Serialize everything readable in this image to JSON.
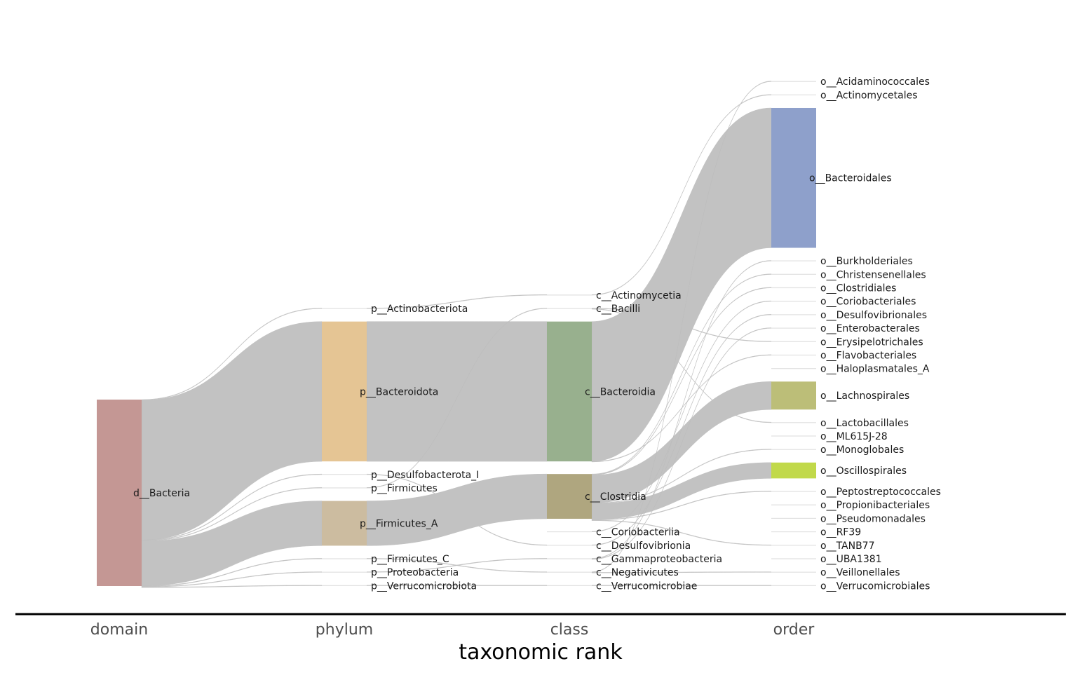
{
  "chart_data": {
    "type": "sankey",
    "xlabel": "taxonomic rank",
    "ranks": [
      "domain",
      "phylum",
      "class",
      "order"
    ],
    "colors": {
      "link": "#c2c2c2",
      "d__Bacteria": "#c49794",
      "p__Bacteroidota": "#e5c594",
      "p__Firmicutes_A": "#ccbca0",
      "c__Bacteroidia": "#98b08e",
      "c__Clostridia": "#afa67f",
      "o__Bacteroidales": "#8ea0cb",
      "o__Lachnospirales": "#bcbe78",
      "o__Oscillospirales": "#c1d94a",
      "minor": "#e0e0e0"
    },
    "nodes": [
      {
        "name": "d__Bacteria",
        "rank": 0,
        "value": 100
      },
      {
        "name": "p__Actinobacteriota",
        "rank": 1,
        "value": 0.1
      },
      {
        "name": "p__Bacteroidota",
        "rank": 1,
        "value": 75
      },
      {
        "name": "p__Desulfobacterota_I",
        "rank": 1,
        "value": 0.1
      },
      {
        "name": "p__Firmicutes",
        "rank": 1,
        "value": 0.1
      },
      {
        "name": "p__Firmicutes_A",
        "rank": 1,
        "value": 24
      },
      {
        "name": "p__Firmicutes_C",
        "rank": 1,
        "value": 0.3
      },
      {
        "name": "p__Proteobacteria",
        "rank": 1,
        "value": 0.3
      },
      {
        "name": "p__Verrucomicrobiota",
        "rank": 1,
        "value": 0.1
      },
      {
        "name": "c__Actinomycetia",
        "rank": 2,
        "value": 0.1
      },
      {
        "name": "c__Bacilli",
        "rank": 2,
        "value": 0.1
      },
      {
        "name": "c__Bacteroidia",
        "rank": 2,
        "value": 75
      },
      {
        "name": "c__Clostridia",
        "rank": 2,
        "value": 24
      },
      {
        "name": "c__Coriobacteriia",
        "rank": 2,
        "value": 0.1
      },
      {
        "name": "c__Desulfovibrionia",
        "rank": 2,
        "value": 0.1
      },
      {
        "name": "c__Gammaproteobacteria",
        "rank": 2,
        "value": 0.3
      },
      {
        "name": "c__Negativicutes",
        "rank": 2,
        "value": 0.3
      },
      {
        "name": "c__Verrucomicrobiae",
        "rank": 2,
        "value": 0.1
      },
      {
        "name": "o__Acidaminococcales",
        "rank": 3,
        "value": 0.1
      },
      {
        "name": "o__Actinomycetales",
        "rank": 3,
        "value": 0.1
      },
      {
        "name": "o__Bacteroidales",
        "rank": 3,
        "value": 75
      },
      {
        "name": "o__Burkholderiales",
        "rank": 3,
        "value": 0.2
      },
      {
        "name": "o__Christensenellales",
        "rank": 3,
        "value": 0.2
      },
      {
        "name": "o__Clostridiales",
        "rank": 3,
        "value": 0.1
      },
      {
        "name": "o__Coriobacteriales",
        "rank": 3,
        "value": 0.1
      },
      {
        "name": "o__Desulfovibrionales",
        "rank": 3,
        "value": 0.1
      },
      {
        "name": "o__Enterobacterales",
        "rank": 3,
        "value": 0.1
      },
      {
        "name": "o__Erysipelotrichales",
        "rank": 3,
        "value": 0.1
      },
      {
        "name": "o__Flavobacteriales",
        "rank": 3,
        "value": 0.2
      },
      {
        "name": "o__Haloplasmatales_A",
        "rank": 3,
        "value": 0.05
      },
      {
        "name": "o__Lachnospirales",
        "rank": 3,
        "value": 15
      },
      {
        "name": "o__Lactobacillales",
        "rank": 3,
        "value": 0.05
      },
      {
        "name": "o__ML615J-28",
        "rank": 3,
        "value": 0.05
      },
      {
        "name": "o__Monoglobales",
        "rank": 3,
        "value": 0.05
      },
      {
        "name": "o__Oscillospirales",
        "rank": 3,
        "value": 8.5
      },
      {
        "name": "o__Peptostreptococcales",
        "rank": 3,
        "value": 0.1
      },
      {
        "name": "o__Propionibacteriales",
        "rank": 3,
        "value": 0.05
      },
      {
        "name": "o__Pseudomonadales",
        "rank": 3,
        "value": 0.05
      },
      {
        "name": "o__RF39",
        "rank": 3,
        "value": 0.05
      },
      {
        "name": "o__TANB77",
        "rank": 3,
        "value": 0.05
      },
      {
        "name": "o__UBA1381",
        "rank": 3,
        "value": 0.05
      },
      {
        "name": "o__Veillonellales",
        "rank": 3,
        "value": 0.2
      },
      {
        "name": "o__Verrucomicrobiales",
        "rank": 3,
        "value": 0.1
      }
    ],
    "links": [
      {
        "source": "d__Bacteria",
        "target": "p__Actinobacteriota",
        "value": 0.1
      },
      {
        "source": "d__Bacteria",
        "target": "p__Bacteroidota",
        "value": 75
      },
      {
        "source": "d__Bacteria",
        "target": "p__Desulfobacterota_I",
        "value": 0.1
      },
      {
        "source": "d__Bacteria",
        "target": "p__Firmicutes",
        "value": 0.1
      },
      {
        "source": "d__Bacteria",
        "target": "p__Firmicutes_A",
        "value": 24
      },
      {
        "source": "d__Bacteria",
        "target": "p__Firmicutes_C",
        "value": 0.3
      },
      {
        "source": "d__Bacteria",
        "target": "p__Proteobacteria",
        "value": 0.3
      },
      {
        "source": "d__Bacteria",
        "target": "p__Verrucomicrobiota",
        "value": 0.1
      },
      {
        "source": "p__Actinobacteriota",
        "target": "c__Actinomycetia",
        "value": 0.1
      },
      {
        "source": "p__Bacteroidota",
        "target": "c__Bacteroidia",
        "value": 75
      },
      {
        "source": "p__Desulfobacterota_I",
        "target": "c__Desulfovibrionia",
        "value": 0.1
      },
      {
        "source": "p__Firmicutes",
        "target": "c__Bacilli",
        "value": 0.1
      },
      {
        "source": "p__Firmicutes_A",
        "target": "c__Clostridia",
        "value": 24
      },
      {
        "source": "p__Firmicutes_C",
        "target": "c__Negativicutes",
        "value": 0.3
      },
      {
        "source": "p__Proteobacteria",
        "target": "c__Gammaproteobacteria",
        "value": 0.3
      },
      {
        "source": "p__Verrucomicrobiota",
        "target": "c__Verrucomicrobiae",
        "value": 0.1
      },
      {
        "source": "c__Actinomycetia",
        "target": "o__Actinomycetales",
        "value": 0.1
      },
      {
        "source": "c__Bacilli",
        "target": "o__Erysipelotrichales",
        "value": 0.05
      },
      {
        "source": "c__Bacilli",
        "target": "o__Lactobacillales",
        "value": 0.05
      },
      {
        "source": "c__Bacteroidia",
        "target": "o__Bacteroidales",
        "value": 75
      },
      {
        "source": "c__Bacteroidia",
        "target": "o__Flavobacteriales",
        "value": 0.2
      },
      {
        "source": "c__Clostridia",
        "target": "o__Christensenellales",
        "value": 0.2
      },
      {
        "source": "c__Clostridia",
        "target": "o__Clostridiales",
        "value": 0.1
      },
      {
        "source": "c__Clostridia",
        "target": "o__Lachnospirales",
        "value": 15
      },
      {
        "source": "c__Clostridia",
        "target": "o__Monoglobales",
        "value": 0.05
      },
      {
        "source": "c__Clostridia",
        "target": "o__Oscillospirales",
        "value": 8.5
      },
      {
        "source": "c__Clostridia",
        "target": "o__Peptostreptococcales",
        "value": 0.1
      },
      {
        "source": "c__Clostridia",
        "target": "o__TANB77",
        "value": 0.05
      },
      {
        "source": "c__Coriobacteriia",
        "target": "o__Coriobacteriales",
        "value": 0.1
      },
      {
        "source": "c__Desulfovibrionia",
        "target": "o__Desulfovibrionales",
        "value": 0.1
      },
      {
        "source": "c__Gammaproteobacteria",
        "target": "o__Burkholderiales",
        "value": 0.2
      },
      {
        "source": "c__Gammaproteobacteria",
        "target": "o__Enterobacterales",
        "value": 0.1
      },
      {
        "source": "c__Negativicutes",
        "target": "o__Acidaminococcales",
        "value": 0.1
      },
      {
        "source": "c__Negativicutes",
        "target": "o__Veillonellales",
        "value": 0.2
      },
      {
        "source": "c__Verrucomicrobiae",
        "target": "o__Verrucomicrobiales",
        "value": 0.1
      }
    ]
  }
}
